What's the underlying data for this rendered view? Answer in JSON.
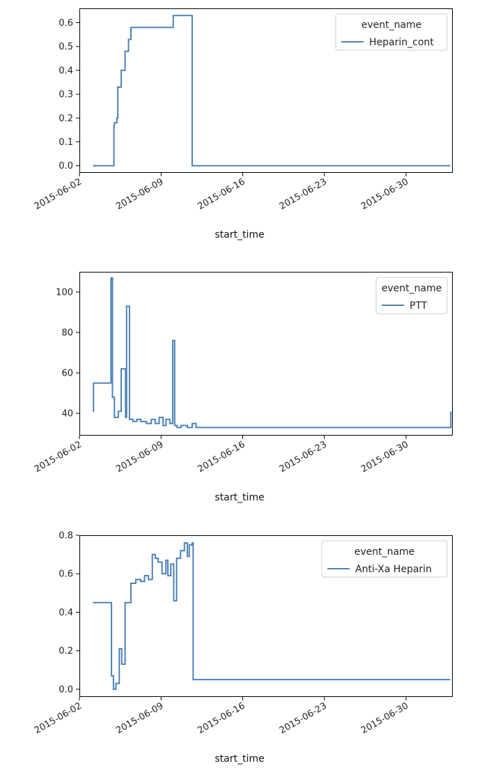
{
  "chart_data": [
    {
      "type": "line",
      "step": true,
      "xlabel": "start_time",
      "ylabel": "",
      "xticks": [
        "2015-06-02",
        "2015-06-09",
        "2015-06-16",
        "2015-06-23",
        "2015-06-30"
      ],
      "xlim": [
        "2015-06-02",
        "2015-07-04"
      ],
      "ylim": [
        -0.03,
        0.66
      ],
      "yticks": [
        0.0,
        0.1,
        0.2,
        0.3,
        0.4,
        0.5,
        0.6
      ],
      "ytick_labels": [
        "0.0",
        "0.1",
        "0.2",
        "0.3",
        "0.4",
        "0.5",
        "0.6"
      ],
      "legend": {
        "title": "event_name",
        "position": "upper right"
      },
      "series": [
        {
          "name": "Heparin_cont",
          "color": "#4c81b8",
          "x": [
            "2015-06-03 04:00",
            "2015-06-04 23:00",
            "2015-06-05 00:00",
            "2015-06-05 05:00",
            "2015-06-05 07:00",
            "2015-06-05 14:00",
            "2015-06-05 22:00",
            "2015-06-06 05:00",
            "2015-06-06 10:00",
            "2015-06-10 01:00",
            "2015-06-11 16:00",
            "2015-07-03 19:00"
          ],
          "y": [
            0.0,
            0.17,
            0.18,
            0.2,
            0.33,
            0.4,
            0.48,
            0.53,
            0.58,
            0.63,
            0.0,
            0.0
          ]
        }
      ]
    },
    {
      "type": "line",
      "step": true,
      "xlabel": "start_time",
      "ylabel": "",
      "xticks": [
        "2015-06-02",
        "2015-06-09",
        "2015-06-16",
        "2015-06-23",
        "2015-06-30"
      ],
      "xlim": [
        "2015-06-02",
        "2015-07-04"
      ],
      "ylim": [
        29,
        110
      ],
      "yticks": [
        40,
        60,
        80,
        100
      ],
      "ytick_labels": [
        "40",
        "60",
        "80",
        "100"
      ],
      "legend": {
        "title": "event_name",
        "position": "upper right"
      },
      "series": [
        {
          "name": "PTT",
          "color": "#4c81b8",
          "x": [
            "2015-06-03 04:00",
            "2015-06-03 05:00",
            "2015-06-04 17:00",
            "2015-06-04 20:00",
            "2015-06-05 00:00",
            "2015-06-05 08:00",
            "2015-06-05 14:00",
            "2015-06-05 23:00",
            "2015-06-06 01:00",
            "2015-06-06 07:00",
            "2015-06-06 14:00",
            "2015-06-06 22:00",
            "2015-06-07 06:00",
            "2015-06-07 18:00",
            "2015-06-08 04:00",
            "2015-06-08 12:00",
            "2015-06-08 20:00",
            "2015-06-09 04:00",
            "2015-06-09 10:00",
            "2015-06-09 18:00",
            "2015-06-10 00:00",
            "2015-06-10 04:00",
            "2015-06-10 09:00",
            "2015-06-10 17:00",
            "2015-06-11 06:00",
            "2015-06-11 16:00",
            "2015-06-12 00:00",
            "2015-07-03 16:00",
            "2015-07-03 20:00"
          ],
          "y": [
            41,
            55,
            107,
            48,
            38,
            41,
            62,
            38,
            93,
            37,
            36,
            37,
            36,
            35,
            37,
            35,
            38,
            34,
            37,
            35,
            76,
            34,
            33,
            34,
            33,
            35,
            33,
            33,
            41
          ]
        }
      ]
    },
    {
      "type": "line",
      "step": true,
      "xlabel": "start_time",
      "ylabel": "",
      "xticks": [
        "2015-06-02",
        "2015-06-09",
        "2015-06-16",
        "2015-06-23",
        "2015-06-30"
      ],
      "xlim": [
        "2015-06-02",
        "2015-07-04"
      ],
      "ylim": [
        -0.04,
        0.8
      ],
      "yticks": [
        0.0,
        0.2,
        0.4,
        0.6,
        0.8
      ],
      "ytick_labels": [
        "0.0",
        "0.2",
        "0.4",
        "0.6",
        "0.8"
      ],
      "legend": {
        "title": "event_name",
        "position": "upper right"
      },
      "series": [
        {
          "name": "Anti-Xa Heparin",
          "color": "#4c81b8",
          "x": [
            "2015-06-03 04:00",
            "2015-06-04 18:00",
            "2015-06-04 22:00",
            "2015-06-05 03:00",
            "2015-06-05 10:00",
            "2015-06-05 15:00",
            "2015-06-05 22:00",
            "2015-06-06 10:00",
            "2015-06-06 20:00",
            "2015-06-07 06:00",
            "2015-06-07 14:00",
            "2015-06-07 22:00",
            "2015-06-08 06:00",
            "2015-06-08 12:00",
            "2015-06-08 18:00",
            "2015-06-09 02:00",
            "2015-06-09 10:00",
            "2015-06-09 14:00",
            "2015-06-09 20:00",
            "2015-06-10 02:00",
            "2015-06-10 08:00",
            "2015-06-10 16:00",
            "2015-06-11 00:00",
            "2015-06-11 06:00",
            "2015-06-11 10:00",
            "2015-06-11 16:00",
            "2015-06-11 18:00",
            "2015-07-03 19:00"
          ],
          "y": [
            0.45,
            0.07,
            0.0,
            0.03,
            0.21,
            0.13,
            0.45,
            0.55,
            0.57,
            0.56,
            0.59,
            0.57,
            0.7,
            0.68,
            0.66,
            0.6,
            0.67,
            0.59,
            0.65,
            0.46,
            0.68,
            0.72,
            0.76,
            0.69,
            0.75,
            0.76,
            0.05,
            0.05
          ]
        }
      ]
    }
  ]
}
